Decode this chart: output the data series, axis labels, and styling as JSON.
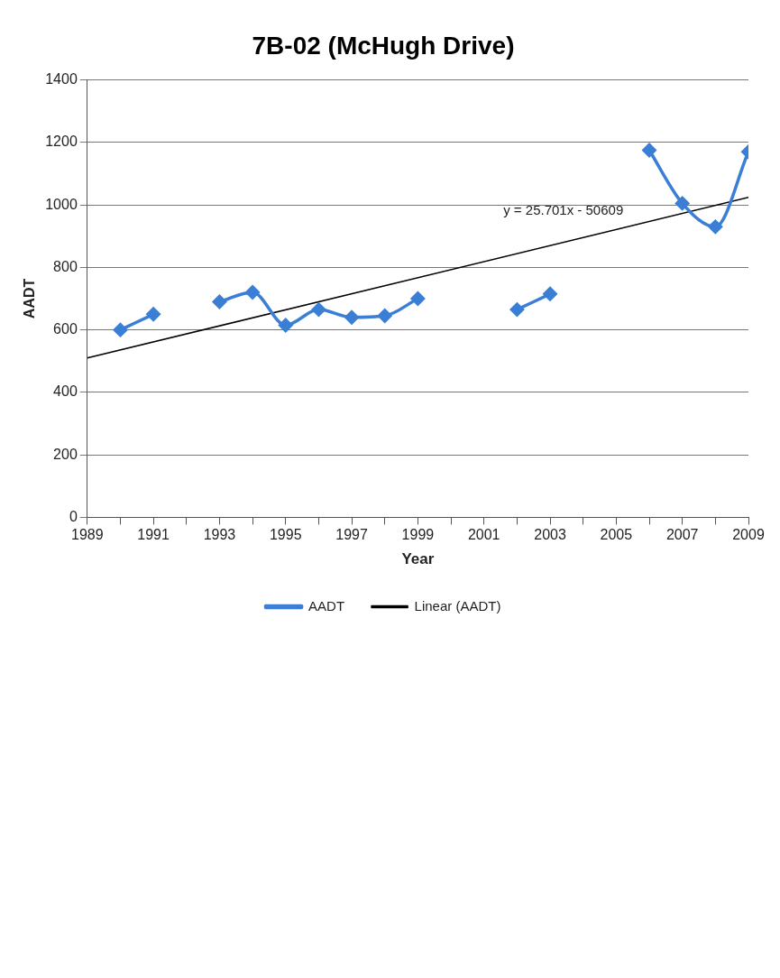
{
  "chart_data": {
    "type": "line",
    "title": "7B-02 (McHugh Drive)",
    "xlabel": "Year",
    "ylabel": "AADT",
    "x": [
      1990,
      1991,
      1992,
      1993,
      1994,
      1995,
      1996,
      1997,
      1998,
      1999,
      2000,
      2001,
      2002,
      2003,
      2004,
      2005,
      2006,
      2007,
      2008,
      2009
    ],
    "series": [
      {
        "name": "AADT",
        "color": "#3a7fd5",
        "values": [
          600,
          650,
          null,
          690,
          720,
          615,
          665,
          640,
          645,
          700,
          null,
          null,
          665,
          715,
          null,
          null,
          1175,
          1005,
          930,
          1170
        ],
        "marker": "diamond"
      },
      {
        "name": "Linear (AADT)",
        "type": "line",
        "color": "#000000",
        "x": [
          1989,
          2009
        ],
        "values": [
          510,
          1024
        ],
        "marker": "none"
      }
    ],
    "annotations": [
      "y = 25.701x - 50609"
    ],
    "xlim": [
      1989,
      2009
    ],
    "xticks": [
      1989,
      {
        "value": 1990,
        "label": null
      },
      1991,
      {
        "value": 1992,
        "label": null
      },
      1993,
      {
        "value": 1994,
        "label": null
      },
      1995,
      {
        "value": 1996,
        "label": null
      },
      1997,
      {
        "value": 1998,
        "label": null
      },
      1999,
      {
        "value": 2000,
        "label": null
      },
      2001,
      {
        "value": 2002,
        "label": null
      },
      2003,
      {
        "value": 2004,
        "label": null
      },
      2005,
      {
        "value": 2006,
        "label": null
      },
      2007,
      {
        "value": 2008,
        "label": null
      },
      2009
    ],
    "ylim": [
      0,
      1400
    ],
    "yticks": [
      0,
      200,
      400,
      600,
      800,
      1000,
      1200,
      1400
    ],
    "grid": "y",
    "legend": "bottom"
  }
}
